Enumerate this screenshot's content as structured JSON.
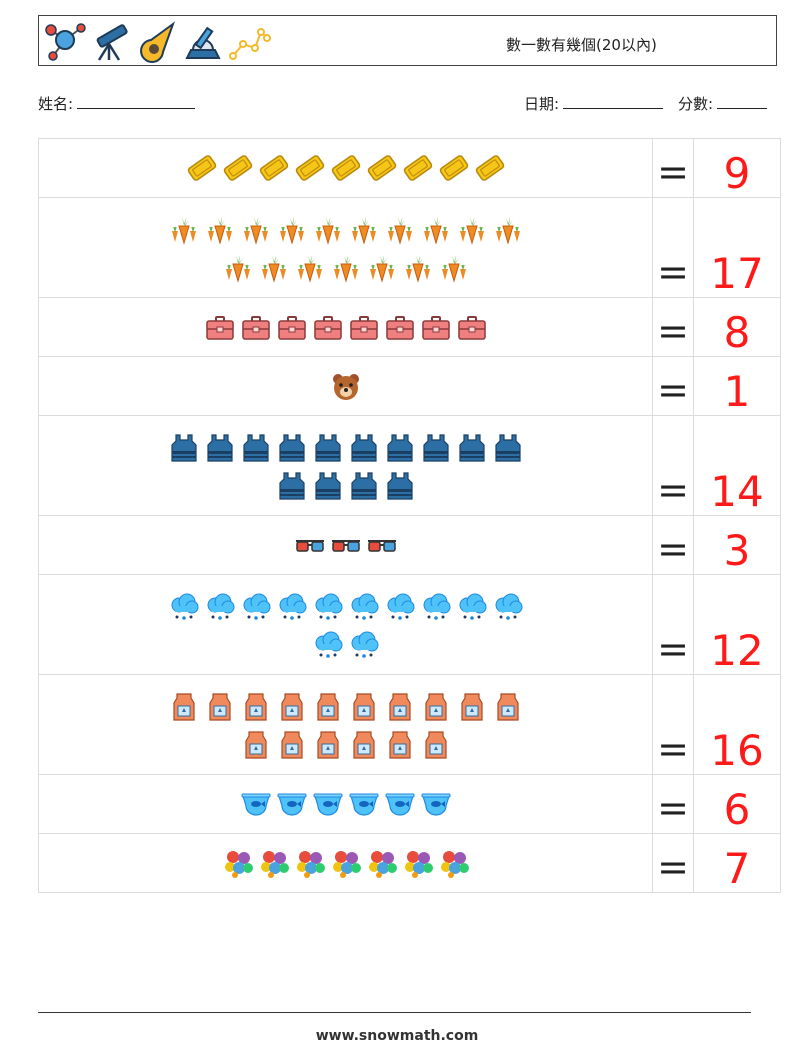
{
  "header": {
    "title": "數一數有幾個(20以內)",
    "icons": [
      "molecule-icon",
      "telescope-icon",
      "meteor-icon",
      "observatory-icon",
      "constellation-icon"
    ]
  },
  "info": {
    "name_label": "姓名:",
    "date_label": "日期:",
    "score_label": "分數:"
  },
  "equals_sign": "=",
  "rows": [
    {
      "icon": "ticket-icon",
      "count": 9,
      "answer": "9"
    },
    {
      "icon": "carrot-icon",
      "count": 17,
      "answer": "17"
    },
    {
      "icon": "toolbox-icon",
      "count": 8,
      "answer": "8"
    },
    {
      "icon": "bear-icon",
      "count": 1,
      "answer": "1"
    },
    {
      "icon": "vest-icon",
      "count": 14,
      "answer": "14"
    },
    {
      "icon": "3d-glasses-icon",
      "count": 3,
      "answer": "3"
    },
    {
      "icon": "snow-cloud-icon",
      "count": 12,
      "answer": "12"
    },
    {
      "icon": "milk-carton-icon",
      "count": 16,
      "answer": "16"
    },
    {
      "icon": "fish-bowl-icon",
      "count": 6,
      "answer": "6"
    },
    {
      "icon": "balloons-icon",
      "count": 7,
      "answer": "7"
    }
  ],
  "footer": {
    "url": "www.snowmath.com"
  }
}
